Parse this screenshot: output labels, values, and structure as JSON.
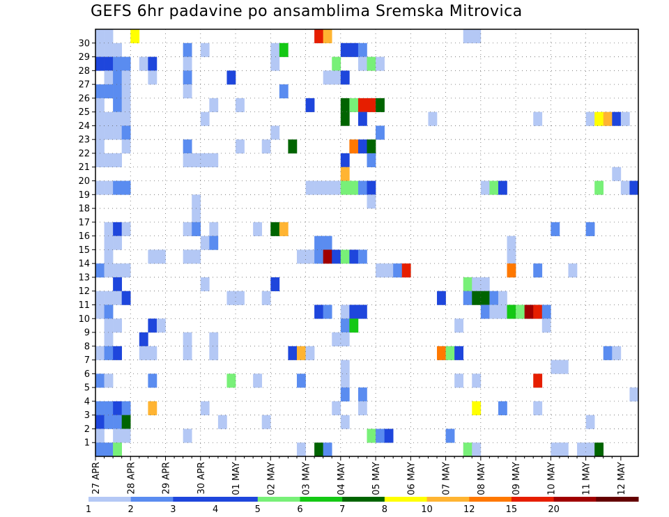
{
  "chart_data": {
    "type": "heatmap",
    "title": "GEFS 6hr padavine po ansamblima Sremska Mitrovica",
    "xlabel": "",
    "ylabel": "",
    "members": [
      1,
      2,
      3,
      4,
      5,
      6,
      7,
      8,
      9,
      10,
      11,
      12,
      13,
      14,
      15,
      16,
      17,
      18,
      19,
      20,
      21,
      22,
      23,
      24,
      25,
      26,
      27,
      28,
      29,
      30
    ],
    "time_step_hours": 6,
    "date_ticks": [
      "27 APR",
      "28 APR",
      "29 APR",
      "30 APR",
      "01 MAY",
      "02 MAY",
      "03 MAY",
      "04 MAY",
      "05 MAY",
      "06 MAY",
      "07 MAY",
      "08 MAY",
      "09 MAY",
      "10 MAY",
      "11 MAY",
      "12 MAY"
    ],
    "grid": true,
    "legend": {
      "position": "bottom",
      "labels": [
        "1",
        "2",
        "3",
        "4",
        "5",
        "6",
        "7",
        "8",
        "10",
        "12",
        "15",
        "20"
      ],
      "colors": [
        "#b4c8f5",
        "#5a8cf0",
        "#1e46dc",
        "#1e46dc",
        "#78f078",
        "#14c814",
        "#006400",
        "#ffff00",
        "#ffb432",
        "#ff7800",
        "#e61e00",
        "#a00000",
        "#640000"
      ]
    },
    "cells": [
      {
        "m": 30,
        "t": 0,
        "v": 1
      },
      {
        "m": 30,
        "t": 1,
        "v": 1
      },
      {
        "m": 30,
        "t": 4,
        "v": 8
      },
      {
        "m": 30,
        "t": 25,
        "v": 15
      },
      {
        "m": 30,
        "t": 26,
        "v": 10
      },
      {
        "m": 30,
        "t": 42,
        "v": 1
      },
      {
        "m": 30,
        "t": 43,
        "v": 1
      },
      {
        "m": 29,
        "t": 0,
        "v": 1
      },
      {
        "m": 29,
        "t": 1,
        "v": 1
      },
      {
        "m": 29,
        "t": 2,
        "v": 1
      },
      {
        "m": 29,
        "t": 10,
        "v": 2
      },
      {
        "m": 29,
        "t": 12,
        "v": 1
      },
      {
        "m": 29,
        "t": 20,
        "v": 1
      },
      {
        "m": 29,
        "t": 21,
        "v": 6
      },
      {
        "m": 29,
        "t": 28,
        "v": 3
      },
      {
        "m": 29,
        "t": 29,
        "v": 3
      },
      {
        "m": 29,
        "t": 30,
        "v": 2
      },
      {
        "m": 28,
        "t": 0,
        "v": 3
      },
      {
        "m": 28,
        "t": 1,
        "v": 3
      },
      {
        "m": 28,
        "t": 2,
        "v": 2
      },
      {
        "m": 28,
        "t": 3,
        "v": 2
      },
      {
        "m": 28,
        "t": 5,
        "v": 1
      },
      {
        "m": 28,
        "t": 6,
        "v": 3
      },
      {
        "m": 28,
        "t": 10,
        "v": 1
      },
      {
        "m": 28,
        "t": 20,
        "v": 1
      },
      {
        "m": 28,
        "t": 27,
        "v": 5
      },
      {
        "m": 28,
        "t": 30,
        "v": 1
      },
      {
        "m": 28,
        "t": 31,
        "v": 5
      },
      {
        "m": 28,
        "t": 32,
        "v": 1
      },
      {
        "m": 27,
        "t": 1,
        "v": 1
      },
      {
        "m": 27,
        "t": 2,
        "v": 2
      },
      {
        "m": 27,
        "t": 3,
        "v": 1
      },
      {
        "m": 27,
        "t": 6,
        "v": 1
      },
      {
        "m": 27,
        "t": 10,
        "v": 2
      },
      {
        "m": 27,
        "t": 15,
        "v": 3
      },
      {
        "m": 27,
        "t": 26,
        "v": 1
      },
      {
        "m": 27,
        "t": 27,
        "v": 1
      },
      {
        "m": 27,
        "t": 28,
        "v": 3
      },
      {
        "m": 26,
        "t": 0,
        "v": 2
      },
      {
        "m": 26,
        "t": 1,
        "v": 2
      },
      {
        "m": 26,
        "t": 2,
        "v": 2
      },
      {
        "m": 26,
        "t": 3,
        "v": 1
      },
      {
        "m": 26,
        "t": 10,
        "v": 1
      },
      {
        "m": 26,
        "t": 21,
        "v": 2
      },
      {
        "m": 25,
        "t": 0,
        "v": 1
      },
      {
        "m": 25,
        "t": 2,
        "v": 2
      },
      {
        "m": 25,
        "t": 3,
        "v": 1
      },
      {
        "m": 25,
        "t": 13,
        "v": 1
      },
      {
        "m": 25,
        "t": 16,
        "v": 1
      },
      {
        "m": 25,
        "t": 24,
        "v": 3
      },
      {
        "m": 25,
        "t": 28,
        "v": 7
      },
      {
        "m": 25,
        "t": 29,
        "v": 5
      },
      {
        "m": 25,
        "t": 30,
        "v": 15
      },
      {
        "m": 25,
        "t": 31,
        "v": 15
      },
      {
        "m": 25,
        "t": 32,
        "v": 7
      },
      {
        "m": 24,
        "t": 0,
        "v": 1
      },
      {
        "m": 24,
        "t": 1,
        "v": 1
      },
      {
        "m": 24,
        "t": 2,
        "v": 1
      },
      {
        "m": 24,
        "t": 3,
        "v": 1
      },
      {
        "m": 24,
        "t": 12,
        "v": 1
      },
      {
        "m": 24,
        "t": 28,
        "v": 7
      },
      {
        "m": 24,
        "t": 30,
        "v": 3
      },
      {
        "m": 24,
        "t": 38,
        "v": 1
      },
      {
        "m": 24,
        "t": 50,
        "v": 1
      },
      {
        "m": 24,
        "t": 56,
        "v": 1
      },
      {
        "m": 24,
        "t": 57,
        "v": 8
      },
      {
        "m": 24,
        "t": 58,
        "v": 10
      },
      {
        "m": 24,
        "t": 59,
        "v": 3
      },
      {
        "m": 24,
        "t": 60,
        "v": 1
      },
      {
        "m": 23,
        "t": 0,
        "v": 1
      },
      {
        "m": 23,
        "t": 1,
        "v": 1
      },
      {
        "m": 23,
        "t": 2,
        "v": 1
      },
      {
        "m": 23,
        "t": 3,
        "v": 2
      },
      {
        "m": 23,
        "t": 20,
        "v": 1
      },
      {
        "m": 23,
        "t": 32,
        "v": 2
      },
      {
        "m": 22,
        "t": 0,
        "v": 1
      },
      {
        "m": 22,
        "t": 3,
        "v": 1
      },
      {
        "m": 22,
        "t": 10,
        "v": 2
      },
      {
        "m": 22,
        "t": 16,
        "v": 1
      },
      {
        "m": 22,
        "t": 19,
        "v": 1
      },
      {
        "m": 22,
        "t": 22,
        "v": 7
      },
      {
        "m": 22,
        "t": 29,
        "v": 12
      },
      {
        "m": 22,
        "t": 30,
        "v": 3
      },
      {
        "m": 22,
        "t": 31,
        "v": 7
      },
      {
        "m": 21,
        "t": 0,
        "v": 1
      },
      {
        "m": 21,
        "t": 1,
        "v": 1
      },
      {
        "m": 21,
        "t": 2,
        "v": 1
      },
      {
        "m": 21,
        "t": 10,
        "v": 1
      },
      {
        "m": 21,
        "t": 11,
        "v": 1
      },
      {
        "m": 21,
        "t": 12,
        "v": 1
      },
      {
        "m": 21,
        "t": 13,
        "v": 1
      },
      {
        "m": 21,
        "t": 28,
        "v": 3
      },
      {
        "m": 21,
        "t": 31,
        "v": 2
      },
      {
        "m": 20,
        "t": 28,
        "v": 10
      },
      {
        "m": 20,
        "t": 59,
        "v": 1
      },
      {
        "m": 19,
        "t": 0,
        "v": 1
      },
      {
        "m": 19,
        "t": 1,
        "v": 1
      },
      {
        "m": 19,
        "t": 2,
        "v": 2
      },
      {
        "m": 19,
        "t": 3,
        "v": 2
      },
      {
        "m": 19,
        "t": 24,
        "v": 1
      },
      {
        "m": 19,
        "t": 25,
        "v": 1
      },
      {
        "m": 19,
        "t": 26,
        "v": 1
      },
      {
        "m": 19,
        "t": 27,
        "v": 1
      },
      {
        "m": 19,
        "t": 28,
        "v": 5
      },
      {
        "m": 19,
        "t": 29,
        "v": 5
      },
      {
        "m": 19,
        "t": 30,
        "v": 2
      },
      {
        "m": 19,
        "t": 31,
        "v": 3
      },
      {
        "m": 19,
        "t": 44,
        "v": 1
      },
      {
        "m": 19,
        "t": 45,
        "v": 5
      },
      {
        "m": 19,
        "t": 46,
        "v": 3
      },
      {
        "m": 19,
        "t": 57,
        "v": 5
      },
      {
        "m": 19,
        "t": 60,
        "v": 1
      },
      {
        "m": 19,
        "t": 61,
        "v": 3
      },
      {
        "m": 18,
        "t": 11,
        "v": 1
      },
      {
        "m": 18,
        "t": 31,
        "v": 1
      },
      {
        "m": 17,
        "t": 11,
        "v": 1
      },
      {
        "m": 16,
        "t": 1,
        "v": 1
      },
      {
        "m": 16,
        "t": 2,
        "v": 3
      },
      {
        "m": 16,
        "t": 3,
        "v": 1
      },
      {
        "m": 16,
        "t": 10,
        "v": 1
      },
      {
        "m": 16,
        "t": 11,
        "v": 2
      },
      {
        "m": 16,
        "t": 13,
        "v": 1
      },
      {
        "m": 16,
        "t": 18,
        "v": 1
      },
      {
        "m": 16,
        "t": 20,
        "v": 7
      },
      {
        "m": 16,
        "t": 21,
        "v": 10
      },
      {
        "m": 16,
        "t": 52,
        "v": 2
      },
      {
        "m": 16,
        "t": 56,
        "v": 2
      },
      {
        "m": 15,
        "t": 1,
        "v": 1
      },
      {
        "m": 15,
        "t": 2,
        "v": 1
      },
      {
        "m": 15,
        "t": 12,
        "v": 1
      },
      {
        "m": 15,
        "t": 13,
        "v": 2
      },
      {
        "m": 15,
        "t": 25,
        "v": 2
      },
      {
        "m": 15,
        "t": 26,
        "v": 2
      },
      {
        "m": 15,
        "t": 47,
        "v": 1
      },
      {
        "m": 14,
        "t": 1,
        "v": 1
      },
      {
        "m": 14,
        "t": 6,
        "v": 1
      },
      {
        "m": 14,
        "t": 7,
        "v": 1
      },
      {
        "m": 14,
        "t": 10,
        "v": 1
      },
      {
        "m": 14,
        "t": 11,
        "v": 1
      },
      {
        "m": 14,
        "t": 23,
        "v": 1
      },
      {
        "m": 14,
        "t": 24,
        "v": 1
      },
      {
        "m": 14,
        "t": 25,
        "v": 2
      },
      {
        "m": 14,
        "t": 26,
        "v": 20
      },
      {
        "m": 14,
        "t": 27,
        "v": 3
      },
      {
        "m": 14,
        "t": 28,
        "v": 5
      },
      {
        "m": 14,
        "t": 29,
        "v": 3
      },
      {
        "m": 14,
        "t": 30,
        "v": 2
      },
      {
        "m": 14,
        "t": 47,
        "v": 1
      },
      {
        "m": 13,
        "t": 0,
        "v": 2
      },
      {
        "m": 13,
        "t": 1,
        "v": 1
      },
      {
        "m": 13,
        "t": 2,
        "v": 1
      },
      {
        "m": 13,
        "t": 3,
        "v": 1
      },
      {
        "m": 13,
        "t": 32,
        "v": 1
      },
      {
        "m": 13,
        "t": 33,
        "v": 1
      },
      {
        "m": 13,
        "t": 34,
        "v": 2
      },
      {
        "m": 13,
        "t": 35,
        "v": 15
      },
      {
        "m": 13,
        "t": 47,
        "v": 12
      },
      {
        "m": 13,
        "t": 50,
        "v": 2
      },
      {
        "m": 13,
        "t": 54,
        "v": 1
      },
      {
        "m": 12,
        "t": 2,
        "v": 3
      },
      {
        "m": 12,
        "t": 12,
        "v": 1
      },
      {
        "m": 12,
        "t": 20,
        "v": 3
      },
      {
        "m": 12,
        "t": 42,
        "v": 5
      },
      {
        "m": 12,
        "t": 43,
        "v": 1
      },
      {
        "m": 12,
        "t": 44,
        "v": 1
      },
      {
        "m": 11,
        "t": 0,
        "v": 1
      },
      {
        "m": 11,
        "t": 1,
        "v": 1
      },
      {
        "m": 11,
        "t": 2,
        "v": 1
      },
      {
        "m": 11,
        "t": 3,
        "v": 3
      },
      {
        "m": 11,
        "t": 15,
        "v": 1
      },
      {
        "m": 11,
        "t": 16,
        "v": 1
      },
      {
        "m": 11,
        "t": 19,
        "v": 1
      },
      {
        "m": 11,
        "t": 39,
        "v": 3
      },
      {
        "m": 11,
        "t": 42,
        "v": 2
      },
      {
        "m": 11,
        "t": 43,
        "v": 7
      },
      {
        "m": 11,
        "t": 44,
        "v": 7
      },
      {
        "m": 11,
        "t": 45,
        "v": 2
      },
      {
        "m": 11,
        "t": 46,
        "v": 1
      },
      {
        "m": 10,
        "t": 0,
        "v": 1
      },
      {
        "m": 10,
        "t": 1,
        "v": 2
      },
      {
        "m": 10,
        "t": 25,
        "v": 3
      },
      {
        "m": 10,
        "t": 26,
        "v": 2
      },
      {
        "m": 10,
        "t": 28,
        "v": 1
      },
      {
        "m": 10,
        "t": 29,
        "v": 3
      },
      {
        "m": 10,
        "t": 30,
        "v": 3
      },
      {
        "m": 10,
        "t": 44,
        "v": 2
      },
      {
        "m": 10,
        "t": 45,
        "v": 1
      },
      {
        "m": 10,
        "t": 46,
        "v": 1
      },
      {
        "m": 10,
        "t": 47,
        "v": 6
      },
      {
        "m": 10,
        "t": 48,
        "v": 5
      },
      {
        "m": 10,
        "t": 49,
        "v": 20
      },
      {
        "m": 10,
        "t": 50,
        "v": 15
      },
      {
        "m": 10,
        "t": 51,
        "v": 2
      },
      {
        "m": 9,
        "t": 1,
        "v": 1
      },
      {
        "m": 9,
        "t": 2,
        "v": 1
      },
      {
        "m": 9,
        "t": 6,
        "v": 3
      },
      {
        "m": 9,
        "t": 7,
        "v": 1
      },
      {
        "m": 9,
        "t": 28,
        "v": 2
      },
      {
        "m": 9,
        "t": 29,
        "v": 6
      },
      {
        "m": 9,
        "t": 41,
        "v": 1
      },
      {
        "m": 9,
        "t": 51,
        "v": 1
      },
      {
        "m": 8,
        "t": 1,
        "v": 1
      },
      {
        "m": 8,
        "t": 5,
        "v": 3
      },
      {
        "m": 8,
        "t": 10,
        "v": 1
      },
      {
        "m": 8,
        "t": 13,
        "v": 1
      },
      {
        "m": 8,
        "t": 27,
        "v": 1
      },
      {
        "m": 8,
        "t": 28,
        "v": 1
      },
      {
        "m": 7,
        "t": 0,
        "v": 1
      },
      {
        "m": 7,
        "t": 1,
        "v": 2
      },
      {
        "m": 7,
        "t": 2,
        "v": 3
      },
      {
        "m": 7,
        "t": 5,
        "v": 1
      },
      {
        "m": 7,
        "t": 6,
        "v": 1
      },
      {
        "m": 7,
        "t": 10,
        "v": 1
      },
      {
        "m": 7,
        "t": 13,
        "v": 1
      },
      {
        "m": 7,
        "t": 22,
        "v": 3
      },
      {
        "m": 7,
        "t": 23,
        "v": 10
      },
      {
        "m": 7,
        "t": 24,
        "v": 1
      },
      {
        "m": 7,
        "t": 39,
        "v": 12
      },
      {
        "m": 7,
        "t": 40,
        "v": 5
      },
      {
        "m": 7,
        "t": 41,
        "v": 3
      },
      {
        "m": 7,
        "t": 58,
        "v": 2
      },
      {
        "m": 7,
        "t": 59,
        "v": 1
      },
      {
        "m": 6,
        "t": 28,
        "v": 1
      },
      {
        "m": 6,
        "t": 52,
        "v": 1
      },
      {
        "m": 6,
        "t": 53,
        "v": 1
      },
      {
        "m": 5,
        "t": 0,
        "v": 2
      },
      {
        "m": 5,
        "t": 1,
        "v": 1
      },
      {
        "m": 5,
        "t": 6,
        "v": 2
      },
      {
        "m": 5,
        "t": 15,
        "v": 5
      },
      {
        "m": 5,
        "t": 18,
        "v": 1
      },
      {
        "m": 5,
        "t": 23,
        "v": 2
      },
      {
        "m": 5,
        "t": 28,
        "v": 1
      },
      {
        "m": 5,
        "t": 41,
        "v": 1
      },
      {
        "m": 5,
        "t": 43,
        "v": 1
      },
      {
        "m": 5,
        "t": 50,
        "v": 15
      },
      {
        "m": 4,
        "t": 28,
        "v": 2
      },
      {
        "m": 4,
        "t": 30,
        "v": 2
      },
      {
        "m": 4,
        "t": 61,
        "v": 1
      },
      {
        "m": 3,
        "t": 0,
        "v": 2
      },
      {
        "m": 3,
        "t": 1,
        "v": 2
      },
      {
        "m": 3,
        "t": 2,
        "v": 3
      },
      {
        "m": 3,
        "t": 3,
        "v": 2
      },
      {
        "m": 3,
        "t": 6,
        "v": 10
      },
      {
        "m": 3,
        "t": 12,
        "v": 1
      },
      {
        "m": 3,
        "t": 27,
        "v": 1
      },
      {
        "m": 3,
        "t": 30,
        "v": 1
      },
      {
        "m": 3,
        "t": 43,
        "v": 8
      },
      {
        "m": 3,
        "t": 46,
        "v": 2
      },
      {
        "m": 3,
        "t": 50,
        "v": 1
      },
      {
        "m": 2,
        "t": 0,
        "v": 3
      },
      {
        "m": 2,
        "t": 1,
        "v": 2
      },
      {
        "m": 2,
        "t": 2,
        "v": 2
      },
      {
        "m": 2,
        "t": 3,
        "v": 7
      },
      {
        "m": 2,
        "t": 14,
        "v": 1
      },
      {
        "m": 2,
        "t": 19,
        "v": 1
      },
      {
        "m": 2,
        "t": 28,
        "v": 1
      },
      {
        "m": 2,
        "t": 56,
        "v": 1
      },
      {
        "m": 1,
        "t": 0,
        "v": 1
      },
      {
        "m": 1,
        "t": 2,
        "v": 1
      },
      {
        "m": 1,
        "t": 3,
        "v": 1
      },
      {
        "m": 1,
        "t": 10,
        "v": 1
      },
      {
        "m": 1,
        "t": 31,
        "v": 5
      },
      {
        "m": 1,
        "t": 32,
        "v": 2
      },
      {
        "m": 1,
        "t": 33,
        "v": 3
      },
      {
        "m": 1,
        "t": 40,
        "v": 2
      },
      {
        "m": 0,
        "t": 0,
        "v": 2
      },
      {
        "m": 0,
        "t": 1,
        "v": 2
      },
      {
        "m": 0,
        "t": 2,
        "v": 5
      },
      {
        "m": 0,
        "t": 23,
        "v": 1
      },
      {
        "m": 0,
        "t": 25,
        "v": 7
      },
      {
        "m": 0,
        "t": 26,
        "v": 2
      },
      {
        "m": 0,
        "t": 42,
        "v": 5
      },
      {
        "m": 0,
        "t": 43,
        "v": 1
      },
      {
        "m": 0,
        "t": 52,
        "v": 1
      },
      {
        "m": 0,
        "t": 53,
        "v": 1
      },
      {
        "m": 0,
        "t": 55,
        "v": 1
      },
      {
        "m": 0,
        "t": 56,
        "v": 1
      },
      {
        "m": 0,
        "t": 57,
        "v": 7
      }
    ]
  }
}
